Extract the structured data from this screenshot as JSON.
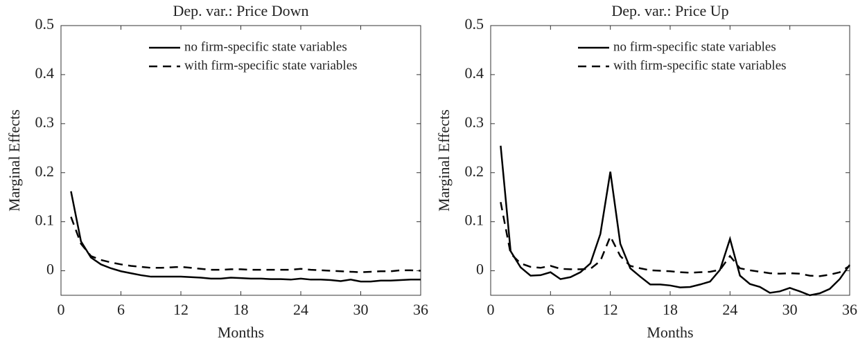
{
  "chart_data": [
    {
      "type": "line",
      "title": "Dep. var.: Price Down",
      "x_label": "Months",
      "y_label": "Marginal Effects",
      "x": [
        1,
        2,
        3,
        4,
        5,
        6,
        7,
        8,
        9,
        10,
        11,
        12,
        13,
        14,
        15,
        16,
        17,
        18,
        19,
        20,
        21,
        22,
        23,
        24,
        25,
        26,
        27,
        28,
        29,
        30,
        31,
        32,
        33,
        34,
        35,
        36
      ],
      "series": [
        {
          "name": "no firm-specific state variables",
          "color": "#000000",
          "line_style": "solid",
          "values": [
            0.162,
            0.06,
            0.027,
            0.013,
            0.005,
            -0.001,
            -0.005,
            -0.009,
            -0.012,
            -0.012,
            -0.012,
            -0.012,
            -0.013,
            -0.014,
            -0.016,
            -0.016,
            -0.014,
            -0.015,
            -0.016,
            -0.016,
            -0.017,
            -0.017,
            -0.018,
            -0.016,
            -0.018,
            -0.018,
            -0.019,
            -0.021,
            -0.018,
            -0.022,
            -0.022,
            -0.02,
            -0.02,
            -0.019,
            -0.018,
            -0.018
          ]
        },
        {
          "name": "with firm-specific state variables",
          "color": "#000000",
          "line_style": "dashed",
          "values": [
            0.11,
            0.055,
            0.03,
            0.022,
            0.017,
            0.013,
            0.01,
            0.008,
            0.006,
            0.006,
            0.007,
            0.008,
            0.006,
            0.004,
            0.002,
            0.002,
            0.003,
            0.003,
            0.002,
            0.002,
            0.002,
            0.002,
            0.002,
            0.004,
            0.002,
            0.001,
            0.0,
            -0.001,
            -0.002,
            -0.003,
            -0.002,
            -0.001,
            -0.001,
            0.001,
            0.001,
            0.0
          ]
        }
      ],
      "xlim": [
        0,
        36
      ],
      "xticks": [
        0,
        6,
        12,
        18,
        24,
        30,
        36
      ],
      "ylim": [
        -0.05,
        0.5
      ],
      "yticks": [
        0,
        0.1,
        0.2,
        0.3,
        0.4,
        0.5
      ],
      "legend": "upper right"
    },
    {
      "type": "line",
      "title": "Dep. var.: Price Up",
      "x_label": "Months",
      "y_label": "Marginal Effects",
      "x": [
        1,
        2,
        3,
        4,
        5,
        6,
        7,
        8,
        9,
        10,
        11,
        12,
        13,
        14,
        15,
        16,
        17,
        18,
        19,
        20,
        21,
        22,
        23,
        24,
        25,
        26,
        27,
        28,
        29,
        30,
        31,
        32,
        33,
        34,
        35,
        36
      ],
      "series": [
        {
          "name": "no firm-specific state variables",
          "color": "#000000",
          "line_style": "solid",
          "values": [
            0.255,
            0.04,
            0.007,
            -0.01,
            -0.009,
            -0.003,
            -0.017,
            -0.013,
            -0.003,
            0.015,
            0.075,
            0.202,
            0.055,
            0.005,
            -0.012,
            -0.028,
            -0.028,
            -0.03,
            -0.034,
            -0.033,
            -0.028,
            -0.022,
            0.002,
            0.065,
            -0.01,
            -0.027,
            -0.033,
            -0.045,
            -0.042,
            -0.035,
            -0.042,
            -0.05,
            -0.046,
            -0.037,
            -0.017,
            0.012
          ]
        },
        {
          "name": "with firm-specific state variables",
          "color": "#000000",
          "line_style": "dashed",
          "values": [
            0.14,
            0.035,
            0.015,
            0.008,
            0.006,
            0.01,
            0.004,
            0.003,
            0.003,
            0.004,
            0.02,
            0.07,
            0.03,
            0.01,
            0.005,
            0.001,
            0.0,
            -0.001,
            -0.003,
            -0.004,
            -0.003,
            -0.002,
            0.002,
            0.03,
            0.005,
            0.001,
            -0.002,
            -0.005,
            -0.006,
            -0.005,
            -0.006,
            -0.01,
            -0.011,
            -0.008,
            -0.003,
            0.01
          ]
        }
      ],
      "xlim": [
        0,
        36
      ],
      "xticks": [
        0,
        6,
        12,
        18,
        24,
        30,
        36
      ],
      "ylim": [
        -0.05,
        0.5
      ],
      "yticks": [
        0,
        0.1,
        0.2,
        0.3,
        0.4,
        0.5
      ],
      "legend": "upper right"
    }
  ]
}
